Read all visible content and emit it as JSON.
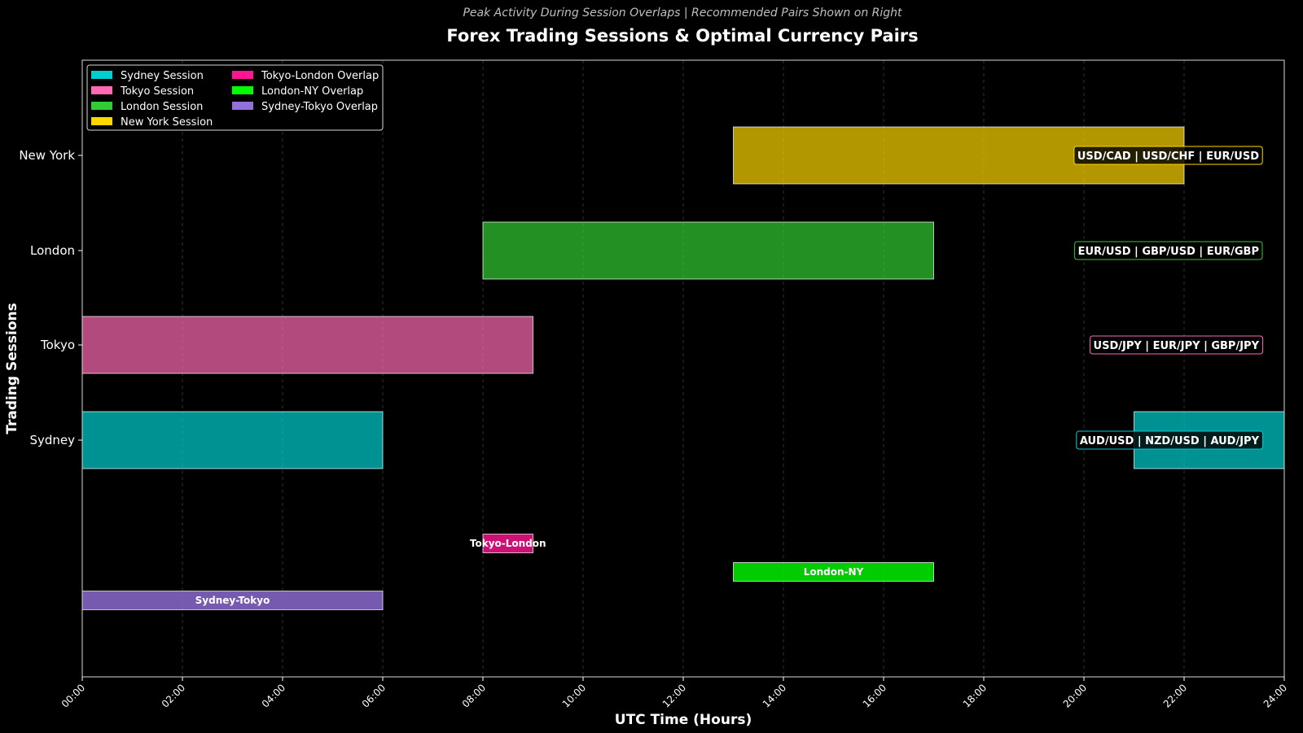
{
  "chart_data": {
    "type": "bar",
    "orientation": "horizontal-gantt",
    "title": "Forex Trading Sessions & Optimal Currency Pairs",
    "subtitle": "Peak Activity During Session Overlaps | Recommended Pairs Shown on Right",
    "xlabel": "UTC Time (Hours)",
    "ylabel": "Trading Sessions",
    "xlim": [
      0,
      24
    ],
    "x_ticks": [
      "00:00",
      "02:00",
      "04:00",
      "06:00",
      "08:00",
      "10:00",
      "12:00",
      "14:00",
      "16:00",
      "18:00",
      "20:00",
      "22:00",
      "24:00"
    ],
    "grid": "vertical dashed",
    "legend_position": "top-left",
    "categories": [
      "Sydney",
      "Tokyo",
      "London",
      "New York"
    ],
    "sessions": [
      {
        "name": "Sydney",
        "legend": "Sydney Session",
        "color": "#00CED1",
        "segments": [
          [
            21,
            24
          ],
          [
            0,
            6
          ]
        ],
        "pairs": "AUD/USD | NZD/USD | AUD/JPY"
      },
      {
        "name": "Tokyo",
        "legend": "Tokyo Session",
        "color": "#FF69B4",
        "segments": [
          [
            0,
            9
          ]
        ],
        "pairs": "USD/JPY | EUR/JPY | GBP/JPY"
      },
      {
        "name": "London",
        "legend": "London Session",
        "color": "#32CD32",
        "segments": [
          [
            8,
            17
          ]
        ],
        "pairs": "EUR/USD | GBP/USD | EUR/GBP"
      },
      {
        "name": "New York",
        "legend": "New York Session",
        "color": "#FFD700",
        "segments": [
          [
            13,
            22
          ]
        ],
        "pairs": "USD/CAD | USD/CHF | EUR/USD"
      }
    ],
    "overlaps": [
      {
        "label": "Tokyo-London",
        "legend": "Tokyo-London Overlap",
        "color": "#FF1493",
        "start": 8,
        "end": 9
      },
      {
        "label": "London-NY",
        "legend": "London-NY Overlap",
        "color": "#00FF00",
        "start": 13,
        "end": 17
      },
      {
        "label": "Sydney-Tokyo",
        "legend": "Sydney-Tokyo Overlap",
        "color": "#9370DB",
        "start": 0,
        "end": 6
      }
    ]
  }
}
